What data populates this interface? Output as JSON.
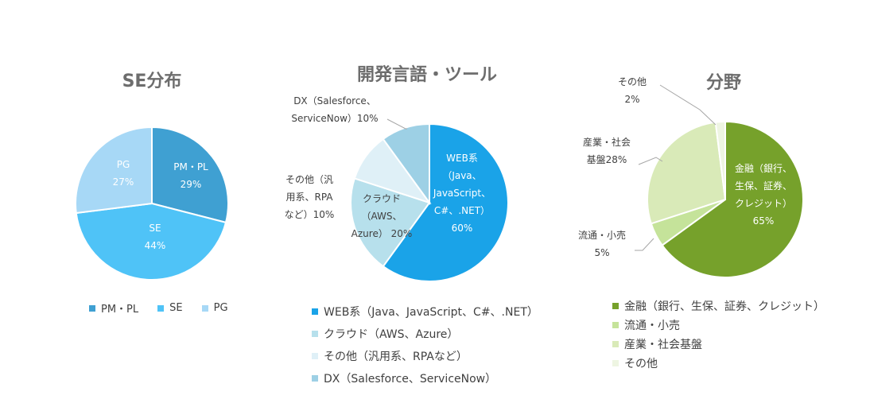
{
  "chart_data": [
    {
      "type": "pie",
      "title": "SE分布",
      "slices": [
        {
          "label": "PM・PL",
          "display": "PM・PL\n29%",
          "value": 29,
          "color": "#3fa0d2"
        },
        {
          "label": "SE",
          "display": "SE\n44%",
          "value": 44,
          "color": "#4fc3f7"
        },
        {
          "label": "PG",
          "display": "PG\n27%",
          "value": 27,
          "color": "#a7d8f6"
        }
      ],
      "legend_position": "bottom"
    },
    {
      "type": "pie",
      "title": "開発言語・ツール",
      "slices": [
        {
          "label": "WEB系（Java、JavaScript、C#、.NET）",
          "display": "WEB系\n（Java、\nJavaScript、\nC#、.NET）\n60%",
          "value": 60,
          "color": "#1aa3e8"
        },
        {
          "label": "クラウド（AWS、Azure）",
          "display": "クラウド\n（AWS、\nAzure） 20%",
          "value": 20,
          "color": "#b7e0ec"
        },
        {
          "label": "その他（汎用系、RPAなど）",
          "display": "その他（汎\n用系、RPA\nなど）10%",
          "value": 10,
          "color": "#dff0f7"
        },
        {
          "label": "DX（Salesforce、ServiceNow）",
          "display": "DX（Salesforce、\nServiceNow）10%",
          "value": 10,
          "color": "#9dd0e5"
        }
      ],
      "legend_position": "bottom"
    },
    {
      "type": "pie",
      "title": "分野",
      "slices": [
        {
          "label": "金融（銀行、生保、証券、クレジット）",
          "display": "金融（銀行、\n生保、証券、\nクレジット）\n65%",
          "value": 65,
          "color": "#76a12b"
        },
        {
          "label": "流通・小売",
          "display": "流通・小売\n5%",
          "value": 5,
          "color": "#c5e39a"
        },
        {
          "label": "産業・社会基盤",
          "display": "産業・社会\n基盤28%",
          "value": 28,
          "color": "#d9eab8"
        },
        {
          "label": "その他",
          "display": "その他\n2%",
          "value": 2,
          "color": "#eef5e2"
        }
      ],
      "legend_position": "bottom"
    }
  ]
}
